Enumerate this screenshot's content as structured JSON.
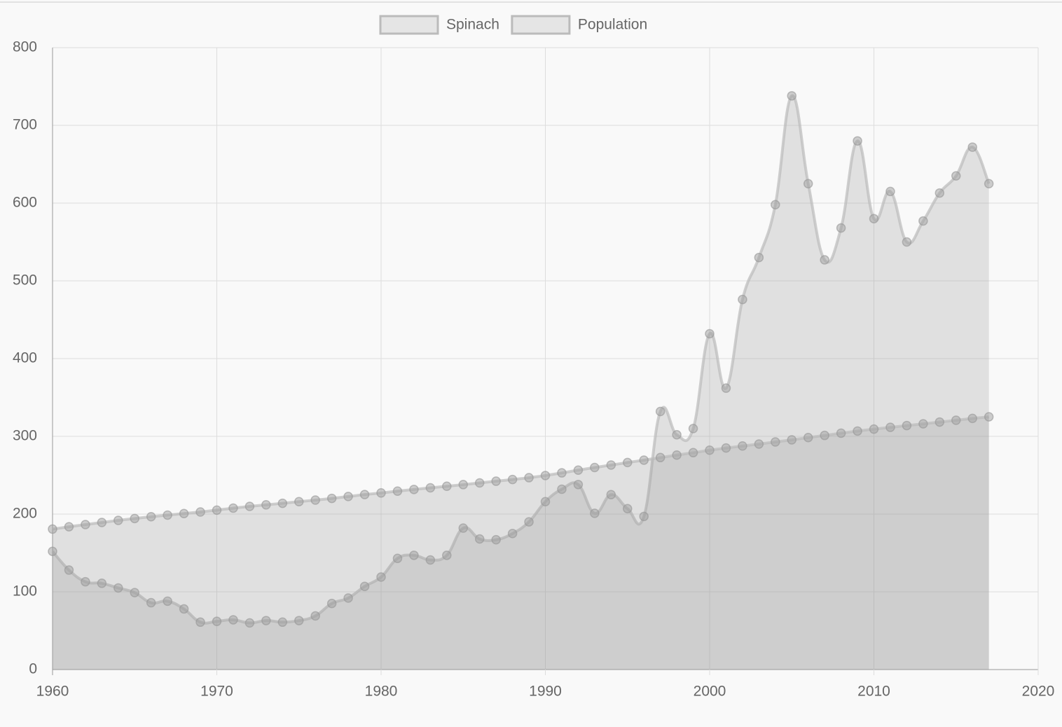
{
  "chart_data": {
    "type": "line",
    "fill": true,
    "grid": true,
    "legend": "top",
    "x": [
      1960,
      1961,
      1962,
      1963,
      1964,
      1965,
      1966,
      1967,
      1968,
      1969,
      1970,
      1971,
      1972,
      1973,
      1974,
      1975,
      1976,
      1977,
      1978,
      1979,
      1980,
      1981,
      1982,
      1983,
      1984,
      1985,
      1986,
      1987,
      1988,
      1989,
      1990,
      1991,
      1992,
      1993,
      1994,
      1995,
      1996,
      1997,
      1998,
      1999,
      2000,
      2001,
      2002,
      2003,
      2004,
      2005,
      2006,
      2007,
      2008,
      2009,
      2010,
      2011,
      2012,
      2013,
      2014,
      2015,
      2016,
      2017
    ],
    "series": [
      {
        "name": "Spinach",
        "color": "#bbbbbb",
        "values": [
          152,
          128,
          113,
          111,
          105,
          99,
          86,
          88,
          78,
          61,
          62,
          64,
          60,
          63,
          61,
          63,
          69,
          85,
          92,
          107,
          119,
          143,
          147,
          141,
          147,
          182,
          168,
          167,
          175,
          190,
          216,
          232,
          238,
          201,
          225,
          207,
          197,
          332,
          302,
          310,
          432,
          362,
          476,
          530,
          598,
          738,
          625,
          527,
          568,
          680,
          580,
          615,
          550,
          577,
          613,
          635,
          672,
          625
        ]
      },
      {
        "name": "Population",
        "color": "#bbbbbb",
        "values": [
          180.7,
          183.7,
          186.5,
          189.2,
          191.9,
          194.3,
          196.6,
          198.7,
          200.7,
          202.7,
          205.1,
          207.7,
          209.9,
          211.9,
          213.9,
          216.0,
          218.0,
          220.2,
          222.6,
          225.1,
          227.2,
          229.5,
          231.7,
          233.8,
          235.8,
          237.9,
          240.1,
          242.3,
          244.5,
          246.8,
          249.6,
          253.0,
          256.5,
          259.9,
          263.1,
          266.3,
          269.4,
          272.7,
          275.9,
          279.0,
          282.2,
          285.0,
          287.6,
          290.1,
          292.8,
          295.5,
          298.4,
          301.2,
          304.1,
          306.8,
          309.3,
          311.6,
          313.9,
          316.1,
          318.4,
          320.7,
          323.1,
          325.1
        ]
      }
    ],
    "xlim": [
      1960,
      2020
    ],
    "xticks": [
      1960,
      1970,
      1980,
      1990,
      2000,
      2010,
      2020
    ],
    "ylim": [
      0,
      800
    ],
    "yticks": [
      0,
      100,
      200,
      300,
      400,
      500,
      600,
      700,
      800
    ]
  }
}
